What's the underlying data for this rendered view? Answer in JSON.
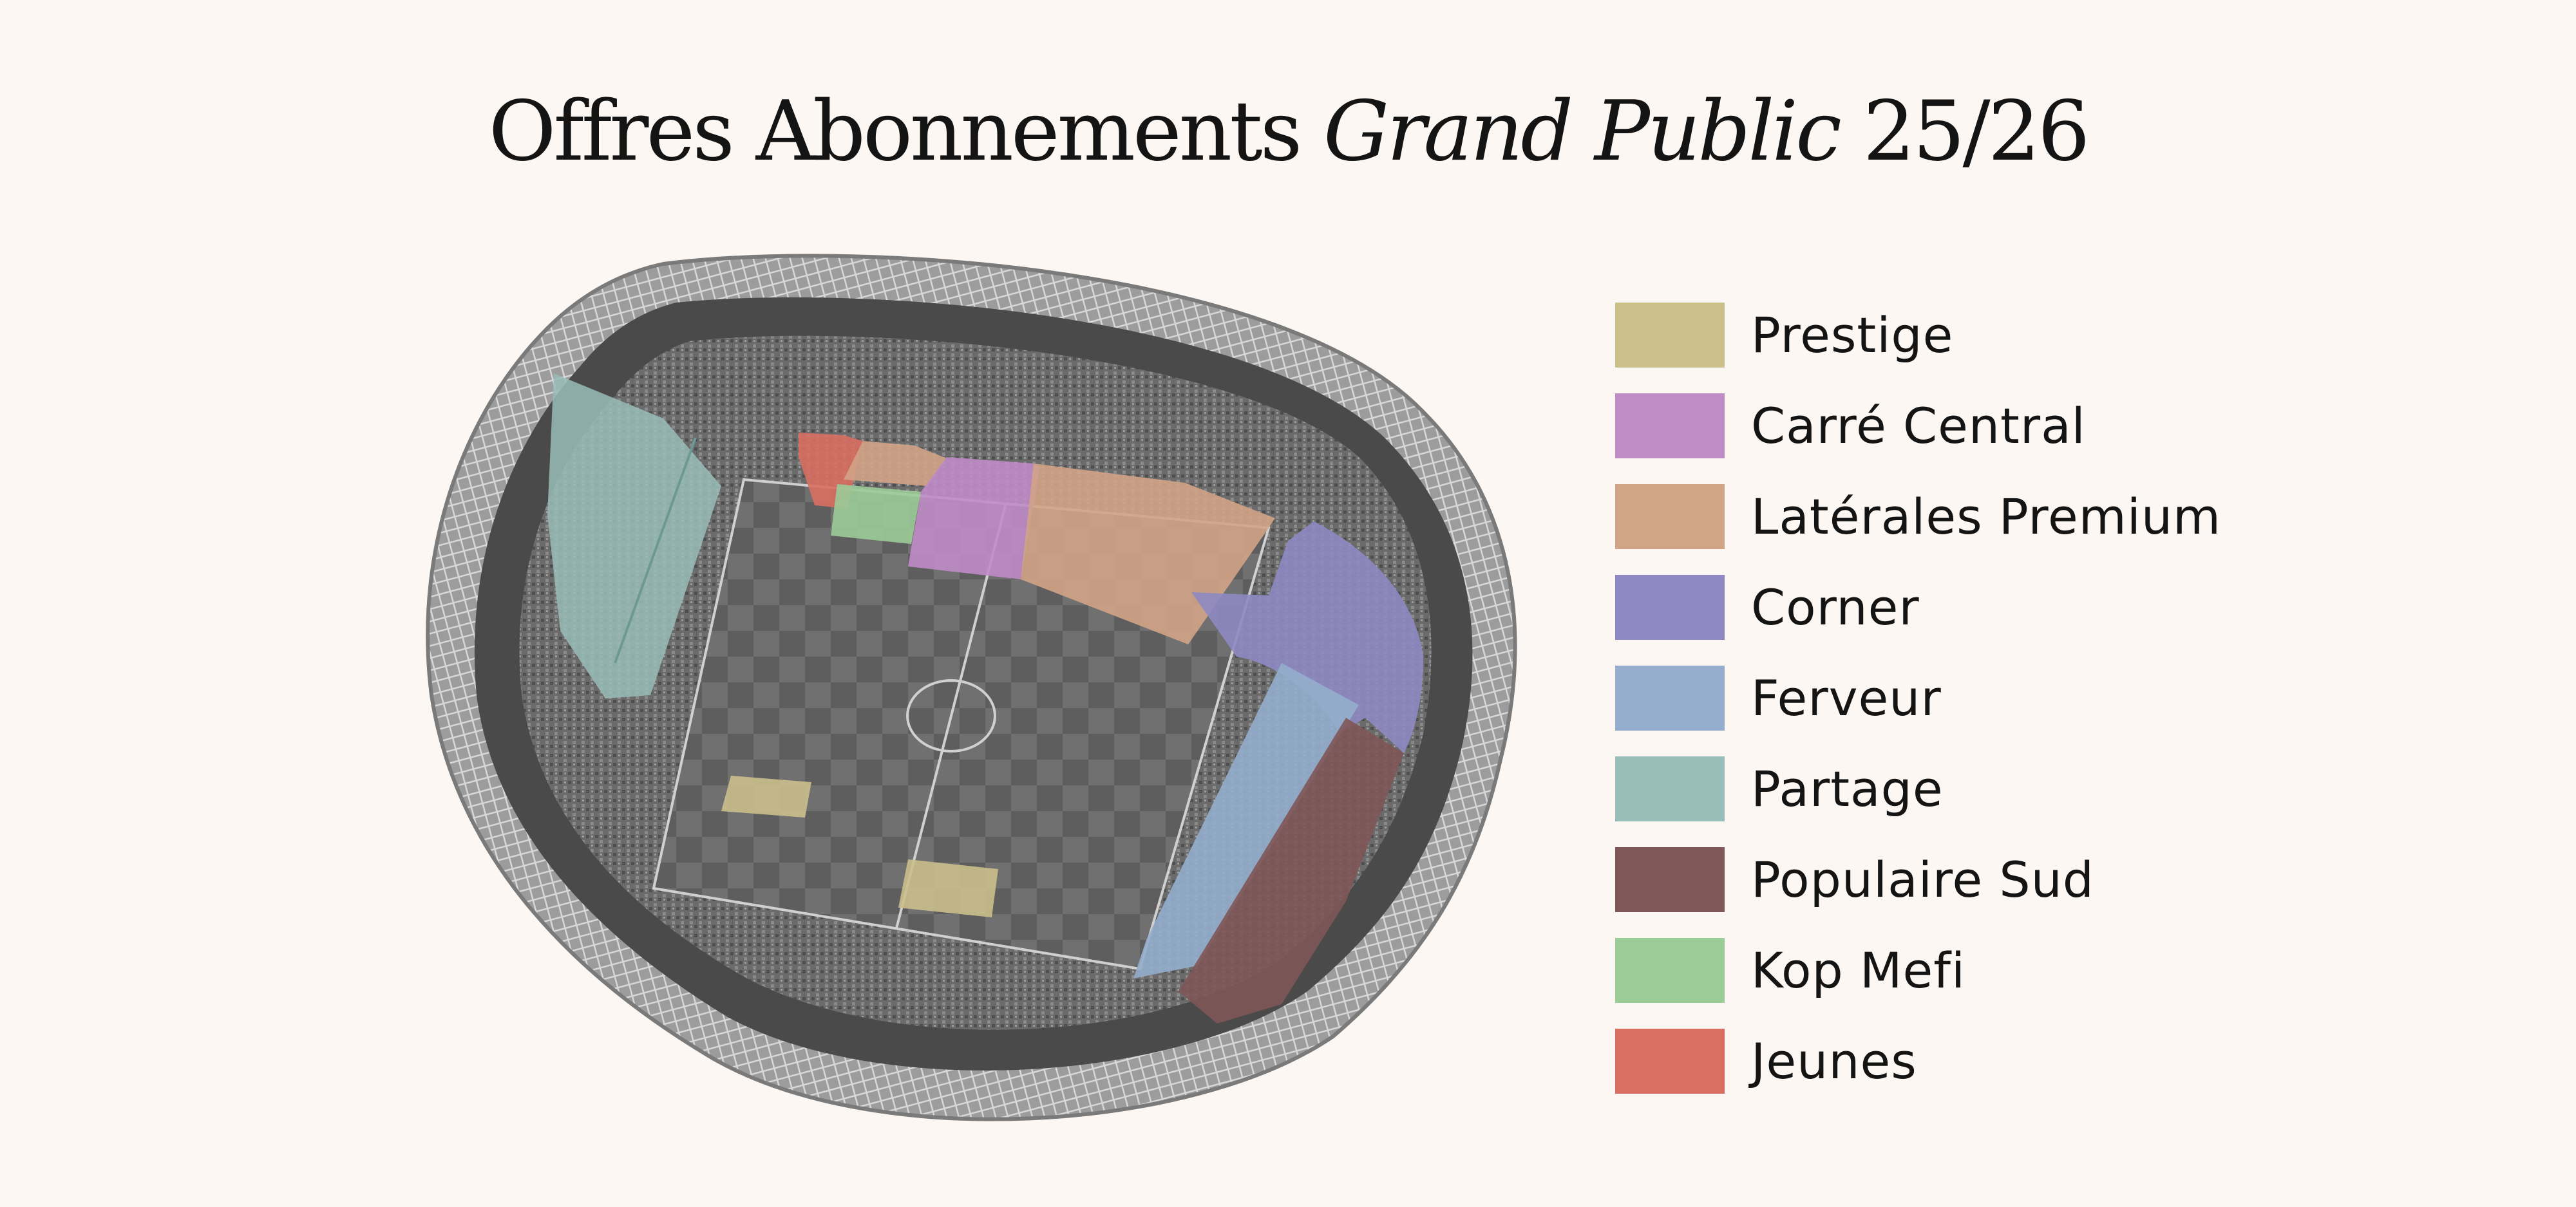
{
  "title": {
    "part1": "Offres Abonnements",
    "part2": "Grand Public",
    "part3": "25/26"
  },
  "legend": [
    {
      "label": "Prestige",
      "color": "#cbbf8c"
    },
    {
      "label": "Carré Central",
      "color": "#c08cc6"
    },
    {
      "label": "Latérales Premium",
      "color": "#d1a387"
    },
    {
      "label": "Corner",
      "color": "#8e89c3"
    },
    {
      "label": "Ferveur",
      "color": "#95aecd"
    },
    {
      "label": "Partage",
      "color": "#99bdb9"
    },
    {
      "label": "Populaire Sud",
      "color": "#7f5757"
    },
    {
      "label": "Kop Mefi",
      "color": "#9bcc98"
    },
    {
      "label": "Jeunes",
      "color": "#d96e62"
    }
  ]
}
